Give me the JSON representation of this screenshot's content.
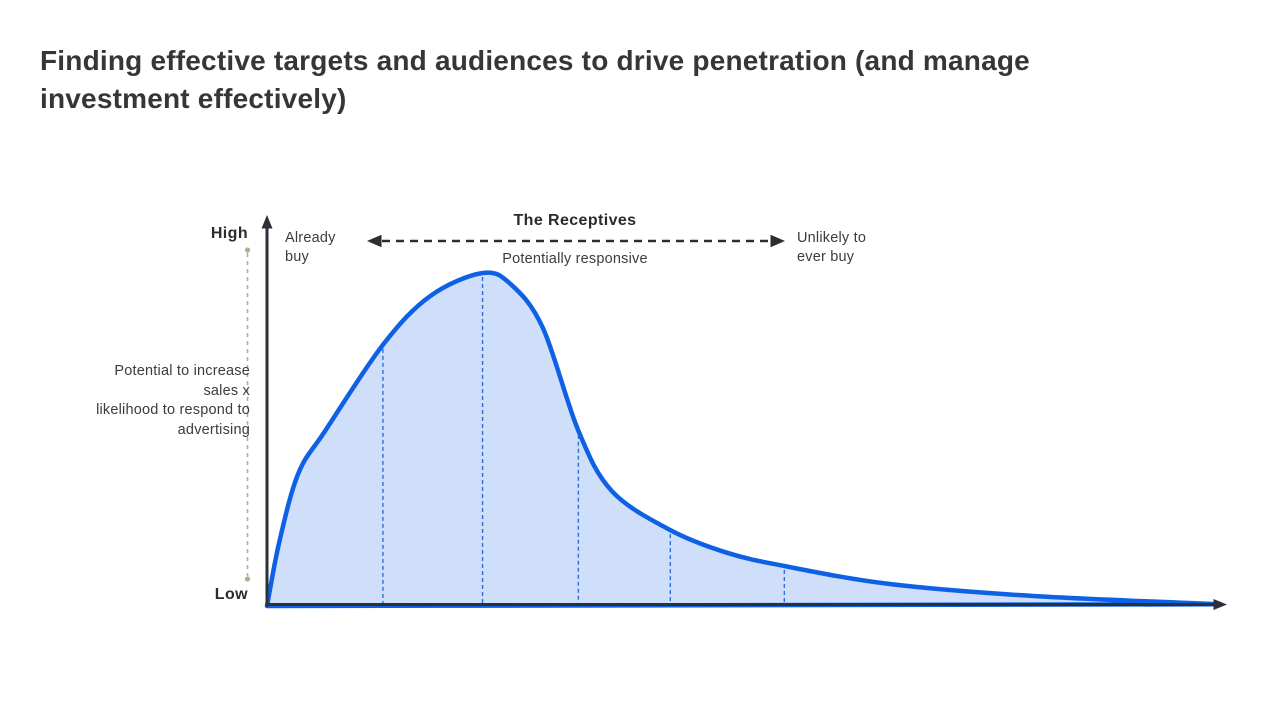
{
  "slide": {
    "title": "Finding effective targets and audiences to drive penetration (and manage investment effectively)"
  },
  "chart": {
    "high_label": "High",
    "low_label": "Low",
    "y_axis_label_lines": [
      "Potential to increase",
      "sales x",
      "likelihood to respond to",
      "advertising"
    ],
    "already_buy_label": "Already buy",
    "receptives_label": "The Receptives",
    "potentially_responsive_label": "Potentially responsive",
    "unlikely_label": "Unlikely to ever buy"
  },
  "chart_data": {
    "type": "area",
    "title": "Finding effective targets and audiences to drive penetration (and manage investment effectively)",
    "xlabel": "",
    "ylabel": "Potential to increase sales x likelihood to respond to advertising",
    "y_range_labels": {
      "high": "High",
      "low": "Low"
    },
    "x_segment_labels": {
      "left": "Already buy",
      "center_top": "The Receptives",
      "center_bottom": "Potentially responsive",
      "right": "Unlikely to ever buy"
    },
    "grid": false,
    "legend": false,
    "curve_points": [
      [
        0.0,
        0.0
      ],
      [
        0.013,
        0.195
      ],
      [
        0.033,
        0.4
      ],
      [
        0.061,
        0.527
      ],
      [
        0.121,
        0.784
      ],
      [
        0.17,
        0.93
      ],
      [
        0.225,
        1.0
      ],
      [
        0.255,
        0.965
      ],
      [
        0.288,
        0.835
      ],
      [
        0.325,
        0.526
      ],
      [
        0.36,
        0.345
      ],
      [
        0.421,
        0.228
      ],
      [
        0.48,
        0.16
      ],
      [
        0.54,
        0.12
      ],
      [
        0.65,
        0.066
      ],
      [
        0.8,
        0.03
      ],
      [
        0.995,
        0.005
      ]
    ],
    "segment_dividers": [
      {
        "x": 0.121,
        "h": 0.784
      },
      {
        "x": 0.225,
        "h": 1.0
      },
      {
        "x": 0.325,
        "h": 0.526
      },
      {
        "x": 0.421,
        "h": 0.228
      },
      {
        "x": 0.54,
        "h": 0.12
      }
    ],
    "colors": {
      "curve": "#0e61e4",
      "fill": "#cfdff9",
      "divider": "#2e6fe0",
      "axis": "#2c3038",
      "annotation_arrow": "#2e2e2e",
      "range_line": "#b3ab94"
    }
  }
}
